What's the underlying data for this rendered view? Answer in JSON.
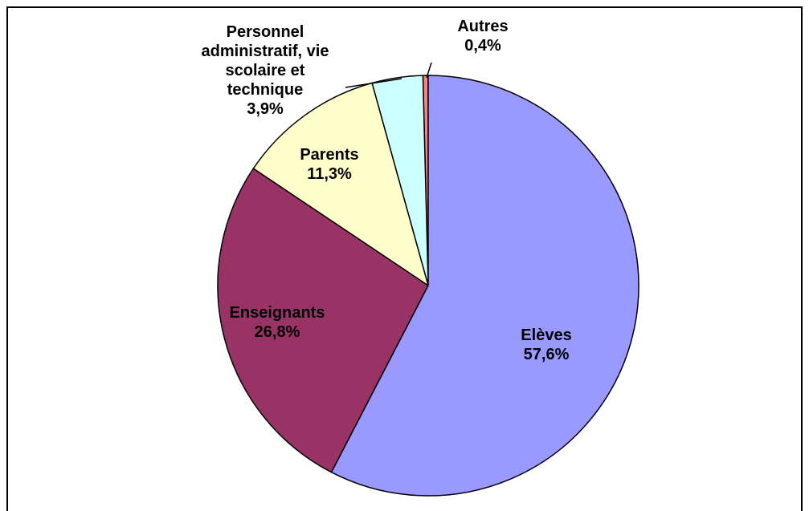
{
  "chart_data": {
    "type": "pie",
    "categories": [
      "Elèves",
      "Enseignants",
      "Parents",
      "Personnel administratif, vie scolaire et technique",
      "Autres"
    ],
    "values": [
      57.6,
      26.8,
      11.3,
      3.9,
      0.4
    ],
    "value_labels": [
      "57,6%",
      "26,8%",
      "11,3%",
      "3,9%",
      "0,4%"
    ],
    "colors": [
      "#9999ff",
      "#993366",
      "#ffffcc",
      "#ccffff",
      "#ff8080"
    ]
  }
}
